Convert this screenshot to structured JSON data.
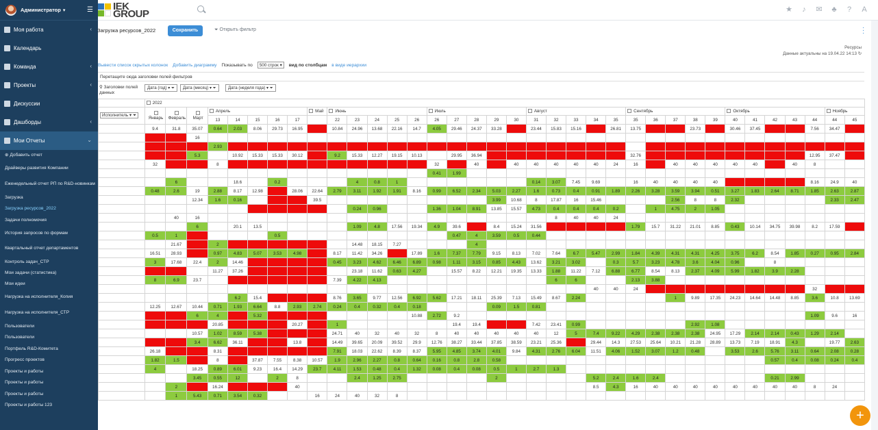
{
  "user": {
    "name": "Администратор"
  },
  "sidebar": {
    "items": [
      {
        "label": "Моя работа",
        "chevron": true
      },
      {
        "label": "Календарь",
        "chevron": false
      },
      {
        "label": "Команда",
        "chevron": true
      },
      {
        "label": "Проекты",
        "chevron": true
      },
      {
        "label": "Дискуссии",
        "chevron": false
      },
      {
        "label": "Дашборды",
        "chevron": true
      },
      {
        "label": "Мои Отчеты",
        "chevron": true
      }
    ],
    "subitems": [
      "⊕ Добавить отчет",
      "Драйверы развития Компании",
      "Еженедельный отчет РП по R&D-новинкам",
      "Загрузка",
      "Загрузка ресурсов_2022",
      "Задачи полномочия",
      "История запросов по формам",
      "Квартальный отчет департаментов",
      "Контроль задач_СТР",
      "Мои задачи (статистика)",
      "Мои идеи",
      "Нагрузка на исполнителя_Копия",
      "Нагрузка на исполнителя_СТР",
      "Пользователи",
      "Пользователи",
      "Портфель R&D-Комитета",
      "Прогресс проектов",
      "Проекты и работы",
      "Проекты и работы",
      "Проекты и работы",
      "Проекты и работы 123"
    ]
  },
  "logo": {
    "line1": "IEK",
    "line2": "GROUP"
  },
  "report": {
    "title": "Загрузка ресурсов_2022",
    "save_label": "Сохранить",
    "filter_label": "Открыть фильтр",
    "resources_label": "Ресурсы",
    "updated_label": "Данные актуальны на 19.04.22 14:13"
  },
  "toolbar": {
    "hidden_cols": "Вывести список скрытых колонок",
    "add_chart": "Добавить диаграмму",
    "show_by": "Показывать по",
    "rows_select": "500 строк",
    "view_cols": "вид по столбцам",
    "view_tree": "в виде иерархии"
  },
  "dropzone": "Перетащите сюда заголовки полей фильтров",
  "fields": {
    "label": "Заголовки полей данных",
    "pills": [
      "Дата (год)",
      "Дата (месяц)",
      "Дата (неделя года)"
    ],
    "executor": "Исполнитель"
  },
  "grid": {
    "year": "2022",
    "months_single": [
      "Январь",
      "Февраль",
      "Март"
    ],
    "months": [
      {
        "name": "Апрель",
        "weeks": [
          "13",
          "14",
          "15",
          "16",
          "17"
        ]
      },
      {
        "name": "Май",
        "weeks": [
          ""
        ]
      },
      {
        "name": "Июнь",
        "weeks": [
          "22",
          "23",
          "24",
          "25",
          "26"
        ]
      },
      {
        "name": "Июль",
        "weeks": [
          "26",
          "27",
          "28",
          "29",
          "30"
        ]
      },
      {
        "name": "Август",
        "weeks": [
          "31",
          "32",
          "33",
          "34",
          "35"
        ]
      },
      {
        "name": "Сентябрь",
        "weeks": [
          "35",
          "36",
          "37",
          "38",
          "39"
        ]
      },
      {
        "name": "Октябрь",
        "weeks": [
          "40",
          "41",
          "42",
          "43",
          "44"
        ]
      },
      {
        "name": "Ноябрь",
        "weeks": [
          "44",
          "45"
        ]
      }
    ],
    "rows": [
      [
        "9.4",
        "31.8",
        "35.07",
        "g0.64",
        "g2.03",
        "8.06",
        "29.73",
        "16.95",
        "r",
        "10.84",
        "24.96",
        "13.68",
        "22.16",
        "14.7",
        "g4.05",
        "29.46",
        "24.37",
        "33.28",
        "r",
        "23.44",
        "15.83",
        "15.16",
        "r",
        "26.81",
        "13.75",
        "r",
        "r",
        "23.73",
        "r",
        "30.46",
        "37.45",
        "r",
        "r",
        "7.56",
        "34.47",
        "r"
      ],
      [
        "r",
        "r",
        "16",
        "",
        "",
        "",
        "",
        "",
        "",
        "",
        "",
        "",
        "",
        "",
        "",
        "",
        "",
        "",
        "",
        "",
        "",
        "",
        "",
        "",
        "",
        "",
        "",
        "",
        "",
        "",
        "",
        "",
        "",
        "",
        "",
        ""
      ],
      [
        "r",
        "r",
        "r",
        "g2.93",
        "r",
        "r",
        "r",
        "r",
        "r",
        "r",
        "r",
        "r",
        "r",
        "r",
        "r",
        "r",
        "r",
        "r",
        "r",
        "r",
        "r",
        "r",
        "r",
        "r",
        "",
        "r",
        "r",
        "r",
        "r",
        "r",
        "r",
        "r",
        "r",
        "r",
        "r",
        "r"
      ],
      [
        "r",
        "r",
        "g5.3",
        "",
        "10.92",
        "15.33",
        "15.33",
        "30.12",
        "r",
        "g9.2",
        "15.33",
        "12.27",
        "19.15",
        "10.13",
        "",
        "29.95",
        "36.94",
        "r",
        "r",
        "r",
        "r",
        "r",
        "r",
        "r",
        "32.76",
        "r",
        "r",
        "r",
        "r",
        "r",
        "r",
        "r",
        "r",
        "12.95",
        "37.47",
        "r"
      ],
      [
        "32",
        "r",
        "r",
        "8",
        "r",
        "r",
        "r",
        "r",
        "r",
        "r",
        "r",
        "r",
        "r",
        "r",
        "32",
        "r",
        "40",
        "r",
        "40",
        "40",
        "40",
        "40",
        "40",
        "24",
        "16",
        "r",
        "40",
        "40",
        "40",
        "40",
        "40",
        "r",
        "40",
        "8",
        "",
        ""
      ],
      [
        "",
        "",
        "",
        "",
        "",
        "",
        "",
        "",
        "",
        "",
        "",
        "",
        "",
        "",
        "g0.41",
        "g1.99",
        "",
        "",
        "",
        "",
        "",
        "",
        "",
        "",
        "",
        "",
        "",
        "",
        "",
        "",
        "",
        "",
        "",
        "",
        "",
        ""
      ],
      [
        "",
        "g6",
        "",
        "",
        "18.6",
        "",
        "g0.2",
        "",
        "",
        "",
        "g4",
        "g0.8",
        "g1",
        "",
        "",
        "",
        "",
        "",
        "",
        "g0.14",
        "g3.07",
        "7.45",
        "9.69",
        "",
        "16",
        "40",
        "40",
        "40",
        "40",
        "r",
        "r",
        "r",
        "r",
        "8.16",
        "24.9",
        "40"
      ],
      [
        "g0.48",
        "g2.6",
        "19",
        "g2.88",
        "8.17",
        "12.98",
        "r",
        "28.06",
        "22.64",
        "g2.79",
        "g3.11",
        "g1.92",
        "g1.91",
        "8.16",
        "g0.99",
        "g6.52",
        "g2.34",
        "g5.03",
        "g2.27",
        "g1.6",
        "g0.73",
        "g0.4",
        "g0.91",
        "g1.89",
        "g2.26",
        "g3.28",
        "g3.59",
        "g3.94",
        "g0.51",
        "g3.27",
        "g1.83",
        "g2.64",
        "g8.71",
        "g1.85",
        "g2.63",
        "g2.87"
      ],
      [
        "",
        "",
        "12.34",
        "g1.6",
        "g0.16",
        "",
        "r",
        "r",
        "39.5",
        "",
        "",
        "",
        "",
        "",
        "",
        "",
        "",
        "g3.99",
        "10.68",
        "8",
        "17.87",
        "16",
        "15.46",
        "",
        "",
        "",
        "g2.56",
        "8",
        "8",
        "g2.32",
        "",
        "",
        "",
        "",
        "g2.33",
        "g2.47"
      ],
      [
        "",
        "",
        "",
        "",
        "",
        "r",
        "r",
        "r",
        "r",
        "",
        "g0.24",
        "g0.96",
        "",
        "",
        "g1.36",
        "g1.04",
        "g8.91",
        "13.85",
        "15.57",
        "g4.73",
        "g0.4",
        "g0.4",
        "g0.4",
        "g0.2",
        "",
        "g1",
        "g4.75",
        "g2",
        "g1.05",
        "",
        "",
        "",
        "",
        "",
        "",
        ""
      ],
      [
        "",
        "40",
        "16",
        "",
        "",
        "",
        "",
        "",
        "",
        "",
        "",
        "",
        "",
        "",
        "",
        "",
        "",
        "",
        "",
        "",
        "8",
        "40",
        "40",
        "24",
        "",
        "",
        "",
        "",
        "",
        "",
        "",
        "",
        "",
        "",
        "",
        ""
      ],
      [
        "",
        "",
        "g6",
        "",
        "20.1",
        "13.5",
        "",
        "",
        "",
        "",
        "g1.09",
        "g4.8",
        "17.56",
        "19.34",
        "g4.9",
        "39.6",
        "r",
        "8.4",
        "15.24",
        "31.56",
        "r",
        "r",
        "r",
        "r",
        "g1.79",
        "15.7",
        "31.22",
        "21.01",
        "8.85",
        "g0.43",
        "10.14",
        "34.75",
        "39.98",
        "8.2",
        "17.59",
        "r"
      ],
      [
        "g0.5",
        "g1",
        "r",
        "",
        "",
        "",
        "g0.5",
        "",
        "",
        "",
        "",
        "",
        "",
        "",
        "",
        "g0.47",
        "g4",
        "g3.59",
        "g0.5",
        "g0.44",
        "",
        "",
        "",
        "",
        "",
        "",
        "",
        "",
        "",
        "",
        "",
        "",
        "",
        "",
        "",
        ""
      ],
      [
        "",
        "21.67",
        "r",
        "g2",
        "r",
        "r",
        "r",
        "r",
        "r",
        "",
        "14.48",
        "18.15",
        "7.27",
        "",
        "",
        "",
        "g4",
        "",
        "",
        "",
        "",
        "",
        "",
        "",
        "",
        "",
        "",
        "",
        "",
        "",
        "",
        "",
        "",
        "",
        "",
        ""
      ],
      [
        "16.51",
        "28.93",
        "r",
        "g0.97",
        "g4.83",
        "g5.07",
        "g3.53",
        "g4.98",
        "r",
        "8.17",
        "11.42",
        "34.26",
        "r",
        "17.89",
        "g1.6",
        "g7.37",
        "g7.79",
        "9.15",
        "8.13",
        "7.02",
        "7.64",
        "g6.7",
        "g5.47",
        "g2.99",
        "g1.84",
        "g4.39",
        "g4.31",
        "g4.31",
        "g4.25",
        "g3.75",
        "g6.2",
        "8.54",
        "g1.85",
        "g0.27",
        "g0.95",
        "g2.84"
      ],
      [
        "g3",
        "17.68",
        "22.4",
        "g2",
        "14.46",
        "r",
        "r",
        "r",
        "r",
        "g0.45",
        "g3.23",
        "g4.62",
        "g6.46",
        "g6.89",
        "g0.98",
        "g1.11",
        "g3.15",
        "g0.85",
        "g4.43",
        "13.62",
        "g3.21",
        "g3.02",
        "",
        "g0.3",
        "g5.7",
        "g3.23",
        "g4.78",
        "g3.6",
        "g4.04",
        "g0.96",
        "",
        "8",
        "",
        "",
        "",
        ""
      ],
      [
        "r",
        "r",
        "",
        "11.27",
        "37.26",
        "r",
        "r",
        "r",
        "r",
        "",
        "23.18",
        "11.62",
        "g0.63",
        "g4.27",
        "",
        "15.57",
        "8.22",
        "12.21",
        "19.35",
        "13.33",
        "g1.88",
        "11.22",
        "7.12",
        "g6.88",
        "g6.77",
        "8.54",
        "8.13",
        "g2.37",
        "g4.09",
        "g5.99",
        "g1.82",
        "g3.9",
        "g2.28",
        "",
        "",
        ""
      ],
      [
        "g8",
        "g6.9",
        "23.7",
        "",
        "r",
        "r",
        "r",
        "r",
        "r",
        "7.39",
        "g4.22",
        "g4.13",
        "",
        "",
        "",
        "",
        "",
        "",
        "",
        "",
        "g6",
        "g6",
        "",
        "",
        "g2.13",
        "g3.88",
        "",
        "",
        "",
        "",
        "",
        "",
        "",
        "",
        "",
        ""
      ],
      [
        "",
        "",
        "",
        "",
        "",
        "",
        "",
        "",
        "",
        "",
        "",
        "",
        "",
        "",
        "",
        "",
        "",
        "",
        "",
        "",
        "",
        "",
        "40",
        "40",
        "24",
        "r",
        "r",
        "r",
        "r",
        "r",
        "r",
        "r",
        "r",
        "32",
        "r",
        "r"
      ],
      [
        "",
        "",
        "",
        "",
        "g6.2",
        "15.4",
        "r",
        "r",
        "r",
        "8.76",
        "g3.65",
        "9.77",
        "12.56",
        "g6.92",
        "g5.62",
        "17.21",
        "18.11",
        "25.39",
        "7.13",
        "15.49",
        "8.67",
        "g2.24",
        "",
        "",
        "",
        "",
        "g1",
        "9.89",
        "17.35",
        "24.23",
        "14.64",
        "14.48",
        "8.85",
        "g3.6",
        "10.8",
        "13.69"
      ],
      [
        "12.25",
        "12.67",
        "10.44",
        "g0.71",
        "g1.93",
        "g6.64",
        "8.8",
        "g2.93",
        "g2.74",
        "g0.24",
        "g0.4",
        "g0.32",
        "g0.4",
        "g0.18",
        "",
        "",
        "",
        "g0.09",
        "g1.5",
        "g0.81",
        "",
        "",
        "",
        "",
        "",
        "",
        "",
        "",
        "",
        "",
        "",
        "",
        "",
        "",
        "",
        ""
      ],
      [
        "r",
        "r",
        "g6",
        "g4",
        "r",
        "g5.32",
        "r",
        "r",
        "r",
        "",
        "",
        "",
        "",
        "10.88",
        "g2.72",
        "9.2",
        "",
        "",
        "",
        "",
        "",
        "",
        "",
        "",
        "",
        "",
        "",
        "",
        "",
        "",
        "",
        "",
        "",
        "g1.09",
        "9.6",
        "16"
      ],
      [
        "r",
        "r",
        "r",
        "20.85",
        "r",
        "r",
        "r",
        "20.27",
        "r",
        "g1",
        "",
        "",
        "",
        "",
        "",
        "19.4",
        "19.4",
        "r",
        "r",
        "7.42",
        "23.41",
        "g0.99",
        "",
        "",
        "",
        "",
        "",
        "g2.92",
        "g1.08",
        "",
        "",
        "",
        "",
        "",
        "",
        ""
      ],
      [
        "",
        "",
        "10.57",
        "g1.02",
        "g8.59",
        "g5.38",
        "r",
        "r",
        "r",
        "24.71",
        "40",
        "32",
        "40",
        "32",
        "8",
        "40",
        "40",
        "40",
        "40",
        "40",
        "12",
        "g5",
        "g7.4",
        "g9.22",
        "g4.29",
        "g2.38",
        "g2.38",
        "g2.38",
        "24.95",
        "17.29",
        "g2.14",
        "g2.14",
        "g0.43",
        "g1.29",
        "g2.14",
        ""
      ],
      [
        "r",
        "r",
        "g3.4",
        "g6.62",
        "36.11",
        "r",
        "r",
        "13.8",
        "r",
        "14.49",
        "39.65",
        "20.09",
        "39.52",
        "29.9",
        "12.76",
        "38.27",
        "33.44",
        "37.85",
        "38.59",
        "23.21",
        "25.36",
        "r",
        "29.44",
        "14.3",
        "27.53",
        "25.64",
        "10.21",
        "21.28",
        "28.89",
        "13.73",
        "7.19",
        "18.91",
        "g4.3",
        "",
        "19.77",
        "g2.63"
      ],
      [
        "26.18",
        "r",
        "r",
        "8.31",
        "r",
        "r",
        "r",
        "r",
        "r",
        "g7.91",
        "18.03",
        "22.62",
        "8.39",
        "8.37",
        "g5.95",
        "g4.85",
        "g3.74",
        "g4.01",
        "9.84",
        "g4.31",
        "g2.76",
        "g6.04",
        "11.51",
        "g4.06",
        "g1.52",
        "g3.07",
        "g1.2",
        "g0.48",
        "",
        "g3.53",
        "g2.6",
        "g5.76",
        "g3.11",
        "g0.64",
        "g2.08",
        "g0.28"
      ],
      [
        "g1.82",
        "g1.5",
        "r",
        "8",
        "r",
        "37.87",
        "7.55",
        "8.38",
        "10.57",
        "g1.9",
        "g2.96",
        "g2.27",
        "g0.8",
        "g0.64",
        "g0.16",
        "g0.8",
        "g2.8",
        "g0.58",
        "",
        "",
        "",
        "",
        "",
        "",
        "",
        "",
        "",
        "",
        "",
        "",
        "",
        "g0.57",
        "g0.4",
        "g0.08",
        "g0.24",
        "g0.4"
      ],
      [
        "g4",
        "",
        "18.25",
        "g0.89",
        "g6.01",
        "9.23",
        "16.4",
        "14.29",
        "g23.7",
        "g4.11",
        "g1.53",
        "g0.48",
        "g0.4",
        "g1.32",
        "g0.08",
        "g0.4",
        "g0.08",
        "g0.5",
        "g1",
        "g2.7",
        "g1.3",
        "",
        "",
        "",
        "",
        "",
        "",
        "",
        "",
        "",
        "",
        "",
        "",
        "",
        "",
        ""
      ],
      [
        "",
        "",
        "g3.45",
        "g0.55",
        "g12",
        "",
        "g2",
        "8",
        "",
        "",
        "g2.4",
        "g1.25",
        "g2.75",
        "",
        "",
        "",
        "",
        "g2",
        "",
        "",
        "",
        "",
        "g5.2",
        "g2.4",
        "g1.6",
        "g2.4",
        "",
        "",
        "",
        "",
        "",
        "g0.21",
        "g2.99",
        "",
        "",
        ""
      ],
      [
        "",
        "g2",
        "r",
        "16.24",
        "r",
        "r",
        "r",
        "40",
        "",
        "",
        "",
        "",
        "",
        "",
        "",
        "",
        "",
        "",
        "",
        "",
        "",
        "",
        "8.5",
        "g4.3",
        "16",
        "40",
        "40",
        "40",
        "40",
        "40",
        "40",
        "40",
        "40",
        "8",
        "24",
        ""
      ],
      [
        "",
        "g1",
        "g5.43",
        "g0.71",
        "g3.54",
        "g0.32",
        "",
        "",
        "16",
        "24",
        "40",
        "32",
        "8",
        "",
        "",
        "",
        "",
        "",
        "",
        "",
        "",
        "",
        "",
        "",
        "",
        "",
        "",
        "",
        "",
        "",
        "",
        "",
        "",
        "",
        "",
        ""
      ]
    ]
  }
}
